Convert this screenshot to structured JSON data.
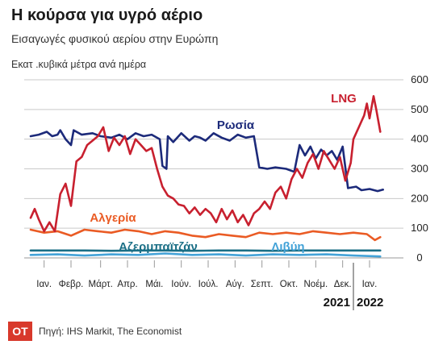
{
  "title": "Η κούρσα για υγρό αέριο",
  "subtitle": "Εισαγωγές φυσικού αερίου στην Ευρώπη",
  "unit": "Εκατ .κυβικά μέτρα ανά ημέρα",
  "source": "Πηγή: IHS Markit, The Economist",
  "logo_text": "OT",
  "colors": {
    "Ρωσία": "#1c2a7a",
    "LNG": "#c8202f",
    "Αλγερία": "#ea5b24",
    "Αζερμπαϊτζάν": "#1b6f86",
    "Λιβύη": "#44a3d8"
  },
  "chart_data": {
    "type": "line",
    "ylim": [
      0,
      600
    ],
    "yticks": [
      0,
      100,
      200,
      300,
      400,
      500,
      600
    ],
    "grid": true,
    "x_months": [
      "Ιαν.",
      "Φεβρ.",
      "Μάρτ.",
      "Απρ.",
      "Μάι.",
      "Ιούν.",
      "Ιούλ.",
      "Αύγ.",
      "Σεπτ.",
      "Οκτ.",
      "Νοέμ.",
      "Δεκ.",
      "Ιαν."
    ],
    "year_labels": [
      "2021",
      "2022"
    ],
    "series": [
      {
        "name": "Ρωσία",
        "points": [
          [
            0,
            410
          ],
          [
            0.3,
            415
          ],
          [
            0.6,
            425
          ],
          [
            0.8,
            410
          ],
          [
            1.0,
            415
          ],
          [
            1.1,
            430
          ],
          [
            1.3,
            400
          ],
          [
            1.5,
            380
          ],
          [
            1.6,
            430
          ],
          [
            1.9,
            415
          ],
          [
            2.3,
            420
          ],
          [
            2.6,
            410
          ],
          [
            3.0,
            405
          ],
          [
            3.3,
            415
          ],
          [
            3.6,
            400
          ],
          [
            3.9,
            420
          ],
          [
            4.2,
            410
          ],
          [
            4.5,
            415
          ],
          [
            4.8,
            400
          ],
          [
            4.9,
            310
          ],
          [
            5.05,
            300
          ],
          [
            5.1,
            410
          ],
          [
            5.3,
            390
          ],
          [
            5.6,
            420
          ],
          [
            5.9,
            395
          ],
          [
            6.1,
            410
          ],
          [
            6.3,
            405
          ],
          [
            6.5,
            395
          ],
          [
            6.8,
            420
          ],
          [
            7.1,
            405
          ],
          [
            7.4,
            395
          ],
          [
            7.7,
            415
          ],
          [
            8.0,
            405
          ],
          [
            8.3,
            410
          ],
          [
            8.5,
            305
          ],
          [
            8.8,
            300
          ],
          [
            9.1,
            305
          ],
          [
            9.5,
            300
          ],
          [
            9.8,
            290
          ],
          [
            10.0,
            380
          ],
          [
            10.2,
            345
          ],
          [
            10.4,
            375
          ],
          [
            10.6,
            335
          ],
          [
            10.8,
            365
          ],
          [
            11.0,
            345
          ],
          [
            11.2,
            360
          ],
          [
            11.4,
            330
          ],
          [
            11.6,
            375
          ],
          [
            11.8,
            235
          ],
          [
            12.1,
            240
          ],
          [
            12.3,
            228
          ],
          [
            12.6,
            232
          ],
          [
            12.9,
            225
          ],
          [
            13.1,
            230
          ]
        ]
      },
      {
        "name": "LNG",
        "points": [
          [
            0,
            135
          ],
          [
            0.15,
            165
          ],
          [
            0.3,
            130
          ],
          [
            0.5,
            90
          ],
          [
            0.7,
            120
          ],
          [
            0.9,
            90
          ],
          [
            1.1,
            215
          ],
          [
            1.3,
            250
          ],
          [
            1.5,
            175
          ],
          [
            1.7,
            325
          ],
          [
            1.9,
            340
          ],
          [
            2.1,
            380
          ],
          [
            2.3,
            395
          ],
          [
            2.5,
            410
          ],
          [
            2.7,
            440
          ],
          [
            2.9,
            360
          ],
          [
            3.1,
            405
          ],
          [
            3.3,
            380
          ],
          [
            3.5,
            410
          ],
          [
            3.7,
            350
          ],
          [
            3.9,
            400
          ],
          [
            4.1,
            380
          ],
          [
            4.3,
            360
          ],
          [
            4.5,
            370
          ],
          [
            4.7,
            300
          ],
          [
            4.9,
            240
          ],
          [
            5.1,
            210
          ],
          [
            5.3,
            200
          ],
          [
            5.5,
            180
          ],
          [
            5.7,
            175
          ],
          [
            5.9,
            150
          ],
          [
            6.1,
            170
          ],
          [
            6.3,
            145
          ],
          [
            6.5,
            165
          ],
          [
            6.7,
            150
          ],
          [
            6.9,
            120
          ],
          [
            7.1,
            165
          ],
          [
            7.3,
            130
          ],
          [
            7.5,
            160
          ],
          [
            7.7,
            120
          ],
          [
            7.9,
            145
          ],
          [
            8.1,
            110
          ],
          [
            8.3,
            150
          ],
          [
            8.5,
            165
          ],
          [
            8.7,
            190
          ],
          [
            8.9,
            165
          ],
          [
            9.1,
            220
          ],
          [
            9.3,
            240
          ],
          [
            9.5,
            200
          ],
          [
            9.7,
            265
          ],
          [
            9.9,
            300
          ],
          [
            10.1,
            270
          ],
          [
            10.3,
            320
          ],
          [
            10.5,
            350
          ],
          [
            10.7,
            300
          ],
          [
            10.9,
            360
          ],
          [
            11.1,
            330
          ],
          [
            11.3,
            300
          ],
          [
            11.5,
            340
          ],
          [
            11.7,
            260
          ],
          [
            11.9,
            320
          ],
          [
            12.0,
            400
          ],
          [
            12.2,
            440
          ],
          [
            12.4,
            480
          ],
          [
            12.5,
            520
          ],
          [
            12.6,
            470
          ],
          [
            12.75,
            545
          ],
          [
            12.85,
            500
          ],
          [
            13.0,
            425
          ]
        ]
      },
      {
        "name": "Αλγερία",
        "points": [
          [
            0,
            95
          ],
          [
            0.5,
            85
          ],
          [
            1.0,
            90
          ],
          [
            1.5,
            75
          ],
          [
            2.0,
            95
          ],
          [
            2.5,
            90
          ],
          [
            3.0,
            85
          ],
          [
            3.5,
            95
          ],
          [
            4.0,
            90
          ],
          [
            4.5,
            80
          ],
          [
            5.0,
            90
          ],
          [
            5.5,
            85
          ],
          [
            6.0,
            75
          ],
          [
            6.5,
            70
          ],
          [
            7.0,
            80
          ],
          [
            7.5,
            75
          ],
          [
            8.0,
            70
          ],
          [
            8.5,
            85
          ],
          [
            9.0,
            80
          ],
          [
            9.5,
            85
          ],
          [
            10.0,
            80
          ],
          [
            10.5,
            90
          ],
          [
            11.0,
            85
          ],
          [
            11.5,
            80
          ],
          [
            12.0,
            85
          ],
          [
            12.5,
            80
          ],
          [
            12.8,
            60
          ],
          [
            13.0,
            70
          ]
        ]
      },
      {
        "name": "Αζερμπαϊτζάν",
        "points": [
          [
            0,
            25
          ],
          [
            1.0,
            25
          ],
          [
            2.0,
            25
          ],
          [
            3.0,
            24
          ],
          [
            4.0,
            25
          ],
          [
            5.0,
            25
          ],
          [
            6.0,
            24
          ],
          [
            7.0,
            25
          ],
          [
            8.0,
            25
          ],
          [
            9.0,
            24
          ],
          [
            10.0,
            25
          ],
          [
            11.0,
            25
          ],
          [
            12.0,
            25
          ],
          [
            13.0,
            25
          ]
        ]
      },
      {
        "name": "Λιβύη",
        "points": [
          [
            0,
            10
          ],
          [
            1.0,
            12
          ],
          [
            2.0,
            8
          ],
          [
            3.0,
            12
          ],
          [
            4.0,
            10
          ],
          [
            5.0,
            15
          ],
          [
            6.0,
            10
          ],
          [
            7.0,
            12
          ],
          [
            8.0,
            8
          ],
          [
            9.0,
            12
          ],
          [
            10.0,
            10
          ],
          [
            11.0,
            12
          ],
          [
            12.0,
            8
          ],
          [
            13.0,
            5
          ]
        ]
      }
    ],
    "series_labels": [
      {
        "name": "Ρωσία"
      },
      {
        "name": "LNG"
      },
      {
        "name": "Αλγερία"
      },
      {
        "name": "Αζερμπαϊτζάν"
      },
      {
        "name": "Λιβύη"
      }
    ]
  }
}
